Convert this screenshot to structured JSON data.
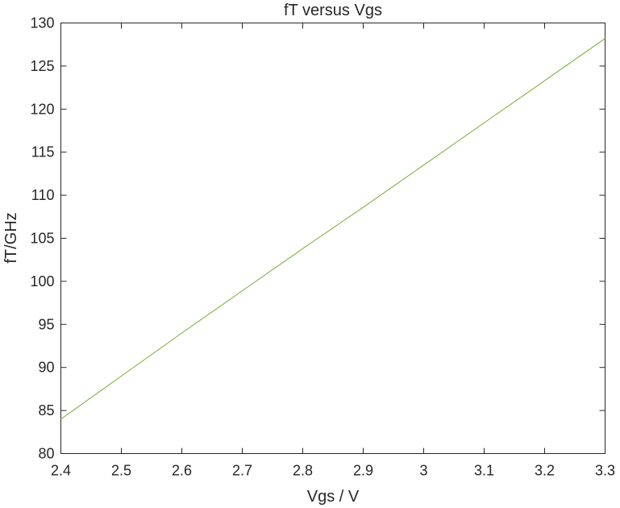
{
  "chart_data": {
    "type": "line",
    "title": "fT versus Vgs",
    "xlabel": "Vgs / V",
    "ylabel": "fT/GHz",
    "xlim": [
      2.4,
      3.3
    ],
    "ylim": [
      80,
      130
    ],
    "x_ticks": [
      "2.4",
      "2.5",
      "2.6",
      "2.7",
      "2.8",
      "2.9",
      "3",
      "3.1",
      "3.2",
      "3.3"
    ],
    "y_ticks": [
      "80",
      "85",
      "90",
      "95",
      "100",
      "105",
      "110",
      "115",
      "120",
      "125",
      "130"
    ],
    "grid": false,
    "legend": "none",
    "series": [
      {
        "color": "#77AC30",
        "x": [
          2.4,
          2.5,
          2.6,
          2.7,
          2.8,
          2.9,
          3.0,
          3.1,
          3.2,
          3.3
        ],
        "y": [
          84.0,
          89.0,
          94.0,
          98.9,
          103.8,
          108.6,
          113.5,
          118.4,
          123.3,
          128.2
        ]
      }
    ]
  }
}
